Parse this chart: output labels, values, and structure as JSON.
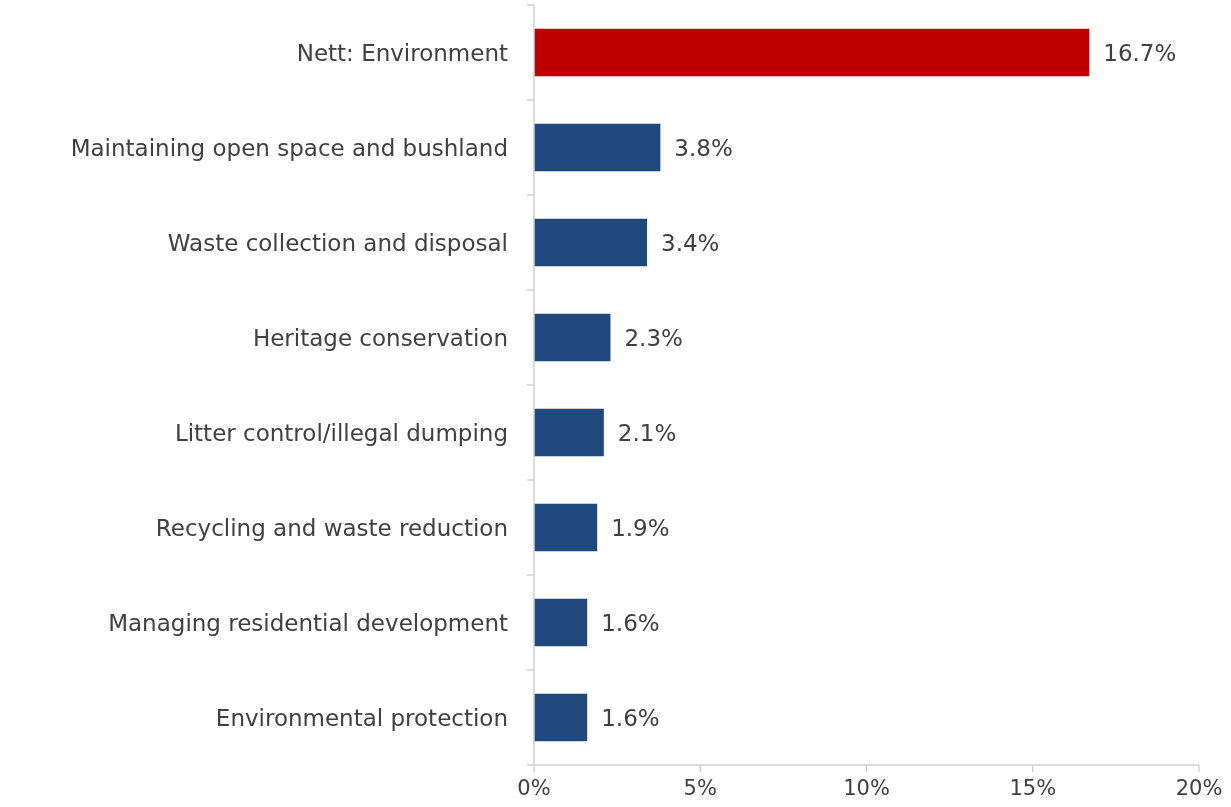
{
  "chart_data": {
    "type": "bar",
    "orientation": "horizontal",
    "categories": [
      "Nett: Environment",
      "Maintaining open space and bushland",
      "Waste collection and disposal",
      "Heritage conservation",
      "Litter control/illegal dumping",
      "Recycling and waste reduction",
      "Managing residential development",
      "Environmental protection"
    ],
    "values": [
      16.7,
      3.8,
      3.4,
      2.3,
      2.1,
      1.9,
      1.6,
      1.6
    ],
    "colors": [
      "#c00000",
      "#1f497d",
      "#1f497d",
      "#1f497d",
      "#1f497d",
      "#1f497d",
      "#1f497d",
      "#1f497d"
    ],
    "value_labels": [
      "16.7%",
      "3.8%",
      "3.4%",
      "2.3%",
      "2.1%",
      "1.9%",
      "1.6%",
      "1.6%"
    ],
    "xlim": [
      0,
      20
    ],
    "xticks": [
      {
        "value": 0,
        "label": "0%"
      },
      {
        "value": 5,
        "label": "5%"
      },
      {
        "value": 10,
        "label": "10%"
      },
      {
        "value": 15,
        "label": "15%"
      },
      {
        "value": 20,
        "label": "20%"
      }
    ],
    "grid": false
  }
}
